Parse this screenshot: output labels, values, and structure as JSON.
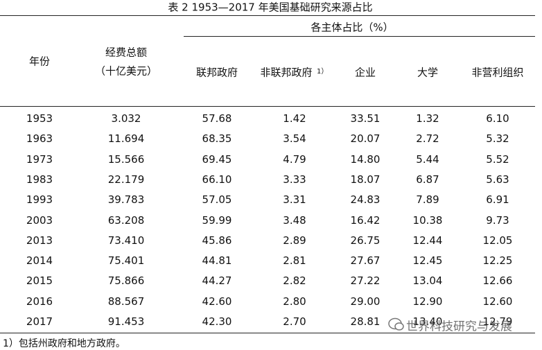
{
  "title": "表 2 1953—2017 年美国基础研究来源占比",
  "header": {
    "year": "年份",
    "funding": [
      "经费总额",
      "（十亿美元）"
    ],
    "group": "各主体占比（%）",
    "columns": [
      "联邦政府",
      "非联邦政府",
      "企业",
      "大学",
      "非营利组织"
    ],
    "footnote_marker": "1）"
  },
  "rows": [
    [
      "1953",
      "3.032",
      "57.68",
      "1.42",
      "33.51",
      "1.32",
      "6.10"
    ],
    [
      "1963",
      "11.694",
      "68.35",
      "3.54",
      "20.07",
      "2.72",
      "5.32"
    ],
    [
      "1973",
      "15.566",
      "69.45",
      "4.79",
      "14.80",
      "5.44",
      "5.52"
    ],
    [
      "1983",
      "22.179",
      "66.10",
      "3.33",
      "18.07",
      "6.87",
      "5.63"
    ],
    [
      "1993",
      "39.783",
      "57.05",
      "3.31",
      "24.83",
      "7.89",
      "6.91"
    ],
    [
      "2003",
      "63.208",
      "59.99",
      "3.48",
      "16.42",
      "10.38",
      "9.73"
    ],
    [
      "2013",
      "73.410",
      "45.86",
      "2.89",
      "26.75",
      "12.44",
      "12.05"
    ],
    [
      "2014",
      "75.401",
      "44.81",
      "2.81",
      "27.67",
      "12.45",
      "12.25"
    ],
    [
      "2015",
      "75.866",
      "44.27",
      "2.82",
      "27.22",
      "13.04",
      "12.66"
    ],
    [
      "2016",
      "88.567",
      "42.60",
      "2.80",
      "29.00",
      "12.90",
      "12.60"
    ],
    [
      "2017",
      "91.453",
      "42.30",
      "2.70",
      "28.81",
      "13.40",
      "12.79"
    ]
  ],
  "footnote": "1）包括州政府和地方政府。",
  "watermark": "世界科技研究与发展"
}
